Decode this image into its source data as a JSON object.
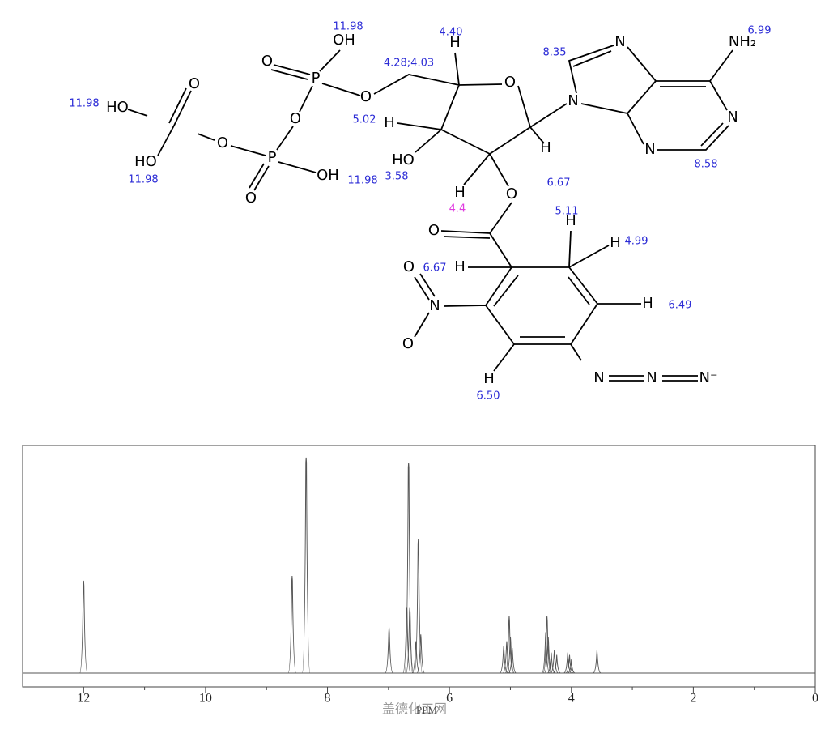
{
  "molecule": {
    "atoms": [
      "OH",
      "O",
      "P",
      "O",
      "O",
      "P",
      "O",
      "OH",
      "O",
      "HO",
      "O",
      "HO",
      "H",
      "O",
      "H",
      "HO",
      "H",
      "H",
      "O",
      "N",
      "N",
      "NH₂",
      "N",
      "N",
      "O",
      "H",
      "H",
      "H",
      "N",
      "O",
      "O",
      "H",
      "H",
      "N",
      "N",
      "N⁻"
    ],
    "shifts": [
      {
        "text": "11.98",
        "color": "#2b2bd6"
      },
      {
        "text": "11.98",
        "color": "#2b2bd6"
      },
      {
        "text": "11.98",
        "color": "#2b2bd6"
      },
      {
        "text": "11.98",
        "color": "#2b2bd6"
      },
      {
        "text": "3.58",
        "color": "#2b2bd6"
      },
      {
        "text": "4.40",
        "color": "#2b2bd6"
      },
      {
        "text": "4.28;4.03",
        "color": "#2b2bd6"
      },
      {
        "text": "5.02",
        "color": "#2b2bd6"
      },
      {
        "text": "6.67",
        "color": "#2b2bd6"
      },
      {
        "text": "4.4",
        "color": "#e03ce0"
      },
      {
        "text": "8.35",
        "color": "#2b2bd6"
      },
      {
        "text": "6.99",
        "color": "#2b2bd6"
      },
      {
        "text": "8.58",
        "color": "#2b2bd6"
      },
      {
        "text": "5.11",
        "color": "#2b2bd6"
      },
      {
        "text": "4.99",
        "color": "#2b2bd6"
      },
      {
        "text": "6.67",
        "color": "#2b2bd6"
      },
      {
        "text": "6.49",
        "color": "#2b2bd6"
      },
      {
        "text": "6.50",
        "color": "#2b2bd6"
      }
    ]
  },
  "chart_data": {
    "type": "spectrum",
    "x": [
      12.0,
      8.58,
      8.35,
      6.99,
      6.7,
      6.67,
      6.65,
      6.55,
      6.51,
      6.47,
      5.11,
      5.06,
      5.02,
      5.0,
      4.97,
      4.42,
      4.4,
      4.38,
      4.33,
      4.28,
      4.24,
      4.06,
      4.03,
      4.0,
      3.58
    ],
    "values": [
      40.6,
      42.7,
      94.7,
      20,
      29,
      92.5,
      29,
      14,
      59,
      17,
      12,
      14,
      25,
      16,
      11,
      18,
      25,
      16,
      9,
      10,
      8,
      9,
      8,
      6,
      10
    ],
    "color": "#555555",
    "xlim": [
      13,
      0
    ],
    "xticks": [
      12,
      10,
      8,
      6,
      4,
      2,
      0
    ],
    "xminorticks": [
      11,
      9,
      7,
      5,
      3,
      1
    ],
    "ylim": [
      0,
      100
    ],
    "xlabel": "PPM"
  },
  "watermark": "盖德化工网"
}
